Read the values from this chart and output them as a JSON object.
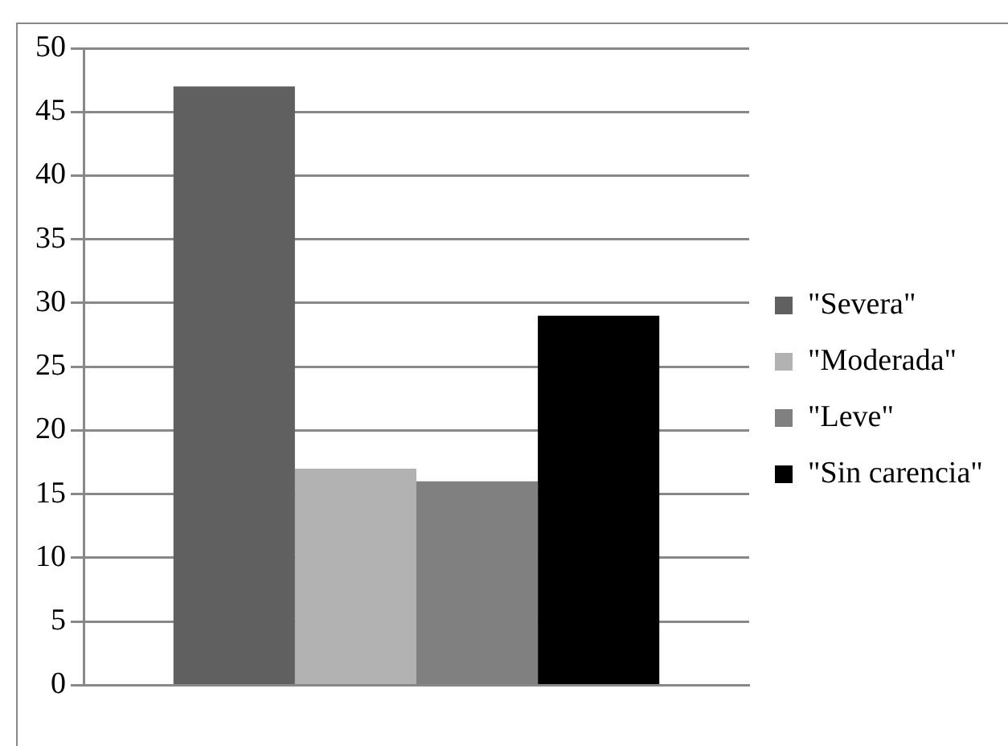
{
  "chart_data": {
    "type": "bar",
    "categories": [
      null
    ],
    "series": [
      {
        "name": "\"Severa\"",
        "color": "#606060",
        "values": [
          47
        ]
      },
      {
        "name": "\"Moderada\"",
        "color": "#b2b2b2",
        "values": [
          17
        ]
      },
      {
        "name": "\"Leve\"",
        "color": "#808080",
        "values": [
          16
        ]
      },
      {
        "name": "\"Sin carencia\"",
        "color": "#000000",
        "values": [
          29
        ]
      }
    ],
    "ylim": [
      0,
      50
    ],
    "yticks": [
      0,
      5,
      10,
      15,
      20,
      25,
      30,
      35,
      40,
      45,
      50
    ],
    "grid": "y",
    "legend": "right"
  }
}
